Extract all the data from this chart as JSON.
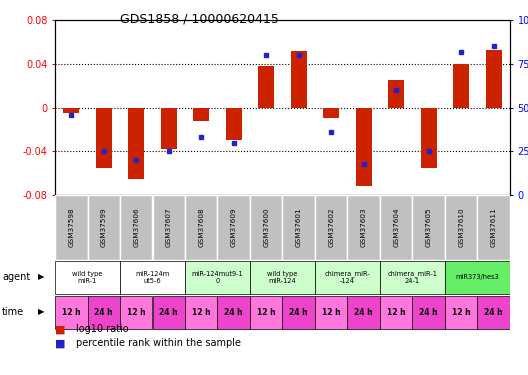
{
  "title": "GDS1858 / 10000620415",
  "samples": [
    "GSM37598",
    "GSM37599",
    "GSM37606",
    "GSM37607",
    "GSM37608",
    "GSM37609",
    "GSM37600",
    "GSM37601",
    "GSM37602",
    "GSM37603",
    "GSM37604",
    "GSM37605",
    "GSM37610",
    "GSM37611"
  ],
  "log10_ratio": [
    -0.005,
    -0.055,
    -0.065,
    -0.038,
    -0.012,
    -0.03,
    0.038,
    0.052,
    -0.01,
    -0.072,
    0.025,
    -0.055,
    0.04,
    0.053
  ],
  "percentile_rank": [
    46,
    25,
    20,
    25,
    33,
    30,
    80,
    80,
    36,
    18,
    60,
    25,
    82,
    85
  ],
  "agents": [
    {
      "label": "wild type\nmiR-1",
      "start": 0,
      "end": 1,
      "color": "#ffffff"
    },
    {
      "label": "miR-124m\nut5-6",
      "start": 2,
      "end": 3,
      "color": "#ffffff"
    },
    {
      "label": "miR-124mut9-1\n0",
      "start": 4,
      "end": 5,
      "color": "#ccffcc"
    },
    {
      "label": "wild type\nmiR-124",
      "start": 6,
      "end": 7,
      "color": "#ccffcc"
    },
    {
      "label": "chimera_miR-\n-124",
      "start": 8,
      "end": 9,
      "color": "#ccffcc"
    },
    {
      "label": "chimera_miR-1\n24-1",
      "start": 10,
      "end": 11,
      "color": "#ccffcc"
    },
    {
      "label": "miR373/hes3",
      "start": 12,
      "end": 13,
      "color": "#66ee66"
    }
  ],
  "time_labels": [
    "12 h",
    "24 h",
    "12 h",
    "24 h",
    "12 h",
    "24 h",
    "12 h",
    "24 h",
    "12 h",
    "24 h",
    "12 h",
    "24 h",
    "12 h",
    "24 h"
  ],
  "ylim_left": [
    -0.08,
    0.08
  ],
  "ylim_right": [
    0,
    100
  ],
  "yticks_left": [
    -0.08,
    -0.04,
    0.0,
    0.04,
    0.08
  ],
  "yticks_right": [
    0,
    25,
    50,
    75,
    100
  ],
  "bar_color": "#cc2200",
  "dot_color": "#2222cc",
  "sample_bg": "#c0c0c0",
  "sample_edge": "#ffffff",
  "agent_white_color": "#ffffff",
  "agent_green_color": "#ccffcc",
  "agent_bright_green": "#66ee66",
  "time_light_magenta": "#ff77dd",
  "time_dark_magenta": "#ee44cc",
  "legend_red": "log10 ratio",
  "legend_blue": "percentile rank within the sample"
}
